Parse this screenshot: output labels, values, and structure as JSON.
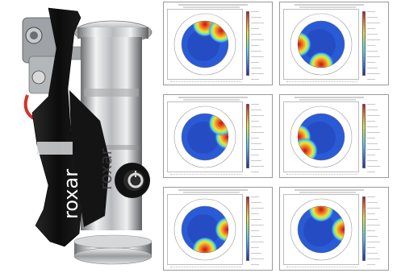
{
  "photo": {
    "brand_text": "roxar",
    "colors": {
      "frame": "#151515",
      "steel": "#c7c9cc",
      "cable": "#d0342c",
      "knob": "#101010"
    }
  },
  "panels": [
    {
      "hot": [
        "top",
        "top-right"
      ]
    },
    {
      "hot": [
        "left",
        "bottom"
      ]
    },
    {
      "hot": [
        "right",
        "top-right"
      ]
    },
    {
      "hot": [
        "left",
        "bottom-left"
      ]
    },
    {
      "hot": [
        "bottom",
        "right"
      ]
    },
    {
      "hot": [
        "top",
        "right"
      ]
    }
  ],
  "colormap": [
    "#2030a0",
    "#2a5bd6",
    "#3b8ef0",
    "#4dc2f5",
    "#64e0c8",
    "#9fe870",
    "#e6e63a",
    "#f5a52a",
    "#ee5a24",
    "#b81818"
  ]
}
